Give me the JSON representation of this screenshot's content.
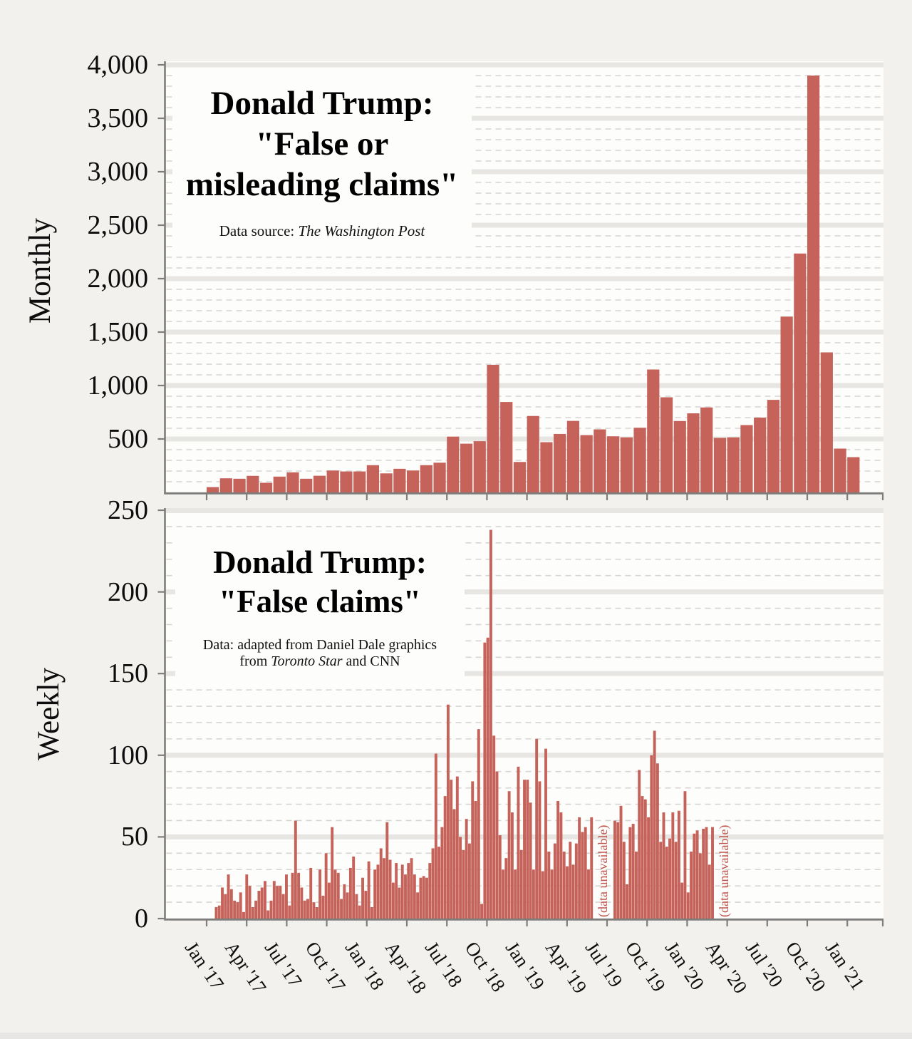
{
  "colors": {
    "bar": "#c5625a",
    "gap_note": "#bf544c"
  },
  "x_axis": {
    "tick_labels": [
      "Jan '17",
      "Apr '17",
      "Jul '17",
      "Oct '17",
      "Jan '18",
      "Apr '18",
      "Jul '18",
      "Oct '18",
      "Jan '19",
      "Apr '19",
      "Jul '19",
      "Oct '19",
      "Jan '20",
      "Apr '20",
      "Jul '20",
      "Oct '20",
      "Jan '21"
    ]
  },
  "chart_data": [
    {
      "type": "bar",
      "id": "monthly-false-or-misleading-claims",
      "title_lines": [
        "Donald Trump:",
        "\"False or",
        "misleading claims\""
      ],
      "source_prefix": "Data source: ",
      "source_italic": "The Washington Post",
      "ylabel": "Monthly",
      "ylim": [
        0,
        4000
      ],
      "y_major_step": 500,
      "y_minor_step": 100,
      "y_tick_labels": [
        "500",
        "1,000",
        "1,500",
        "2,000",
        "2,500",
        "3,000",
        "3,500",
        "4,000"
      ],
      "grid": "gray band at each major tick, dashed minor lines",
      "categories": [
        "Jan '17",
        "Feb '17",
        "Mar '17",
        "Apr '17",
        "May '17",
        "Jun '17",
        "Jul '17",
        "Aug '17",
        "Sep '17",
        "Oct '17",
        "Nov '17",
        "Dec '17",
        "Jan '18",
        "Feb '18",
        "Mar '18",
        "Apr '18",
        "May '18",
        "Jun '18",
        "Jul '18",
        "Aug '18",
        "Sep '18",
        "Oct '18",
        "Nov '18",
        "Dec '18",
        "Jan '19",
        "Feb '19",
        "Mar '19",
        "Apr '19",
        "May '19",
        "Jun '19",
        "Jul '19",
        "Aug '19",
        "Sep '19",
        "Oct '19",
        "Nov '19",
        "Dec '19",
        "Jan '20",
        "Feb '20",
        "Mar '20",
        "Apr '20",
        "May '20",
        "Jun '20",
        "Jul '20",
        "Aug '20",
        "Sep '20",
        "Oct '20",
        "Nov '20",
        "Dec '20",
        "Jan '21"
      ],
      "values": [
        50,
        132,
        128,
        155,
        90,
        148,
        188,
        128,
        156,
        205,
        196,
        196,
        255,
        178,
        221,
        205,
        255,
        278,
        522,
        456,
        479,
        1194,
        846,
        285,
        715,
        470,
        547,
        669,
        536,
        590,
        525,
        515,
        605,
        1150,
        890,
        668,
        740,
        795,
        510,
        515,
        630,
        700,
        866,
        1645,
        2235,
        3900,
        1310,
        410,
        330
      ]
    },
    {
      "type": "bar",
      "id": "weekly-false-claims",
      "title_lines": [
        "Donald Trump:",
        "\"False claims\""
      ],
      "source_line1": "Data: adapted from Daniel Dale graphics",
      "source_line2_prefix": "from ",
      "source_line2_italic": "Toronto Star",
      "source_line2_suffix": " and CNN",
      "ylabel": "Weekly",
      "ylim": [
        0,
        250
      ],
      "y_major_step": 50,
      "y_minor_step": 10,
      "y_tick_labels": [
        "0",
        "50",
        "100",
        "150",
        "200",
        "250"
      ],
      "grid": "gray band at each major tick, dashed minor lines",
      "gap_note": "(data unavailable)",
      "segments": [
        {
          "range": "Jan '17 – Jun '19",
          "values": [
            7,
            8,
            19,
            15,
            27,
            18,
            11,
            10,
            16,
            4,
            27,
            20,
            7,
            11,
            17,
            19,
            23,
            5,
            11,
            23,
            20,
            20,
            15,
            27,
            8,
            28,
            60,
            28,
            19,
            11,
            12,
            31,
            10,
            7,
            30,
            14,
            40,
            22,
            56,
            30,
            28,
            12,
            21,
            16,
            31,
            38,
            15,
            8,
            25,
            17,
            35,
            7,
            30,
            33,
            43,
            37,
            59,
            36,
            22,
            34,
            19,
            33,
            27,
            34,
            37,
            27,
            16,
            25,
            26,
            25,
            34,
            43,
            101,
            44,
            56,
            75,
            131,
            85,
            67,
            87,
            50,
            42,
            61,
            46,
            84,
            72,
            116,
            9,
            169,
            172,
            238,
            112,
            90,
            51,
            30,
            37,
            78,
            65,
            30,
            93,
            42,
            85,
            85,
            71,
            30,
            110,
            84,
            29,
            104,
            41,
            30,
            46,
            72,
            65,
            41,
            32,
            47,
            33,
            46,
            62,
            53,
            56,
            30,
            62
          ]
        },
        {
          "range": "Jul '19 – Mar '20",
          "values": [
            60,
            59,
            69,
            47,
            21,
            56,
            58,
            41,
            91,
            75,
            73,
            62,
            100,
            115,
            95,
            47,
            65,
            44,
            49,
            65,
            47,
            66,
            22,
            78,
            16,
            41,
            52,
            54,
            40,
            55,
            56,
            33,
            56
          ]
        }
      ]
    }
  ]
}
